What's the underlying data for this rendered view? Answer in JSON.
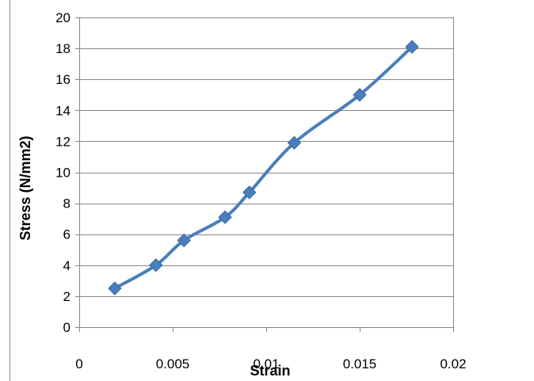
{
  "chart_data": {
    "type": "line",
    "title": "",
    "xlabel": "Strain",
    "ylabel": "Stress (N/mm2)",
    "xlim": [
      0,
      0.02
    ],
    "ylim": [
      0,
      20
    ],
    "x_ticks": [
      0,
      0.005,
      0.01,
      0.015,
      0.02
    ],
    "x_tick_labels": [
      "0",
      "0.005",
      "0.01",
      "0.015",
      "0.02"
    ],
    "y_ticks": [
      0,
      2,
      4,
      6,
      8,
      10,
      12,
      14,
      16,
      18,
      20
    ],
    "y_tick_labels": [
      "0",
      "2",
      "4",
      "6",
      "8",
      "10",
      "12",
      "14",
      "16",
      "18",
      "20"
    ],
    "grid": "horizontal",
    "legend": "none",
    "marker": "diamond",
    "series": [
      {
        "color": "#4a7ebb",
        "x": [
          0.0019,
          0.0041,
          0.0056,
          0.0078,
          0.0091,
          0.0115,
          0.015,
          0.0178
        ],
        "y": [
          2.5,
          4.0,
          5.6,
          7.1,
          8.7,
          11.9,
          15.0,
          18.1
        ]
      }
    ]
  }
}
